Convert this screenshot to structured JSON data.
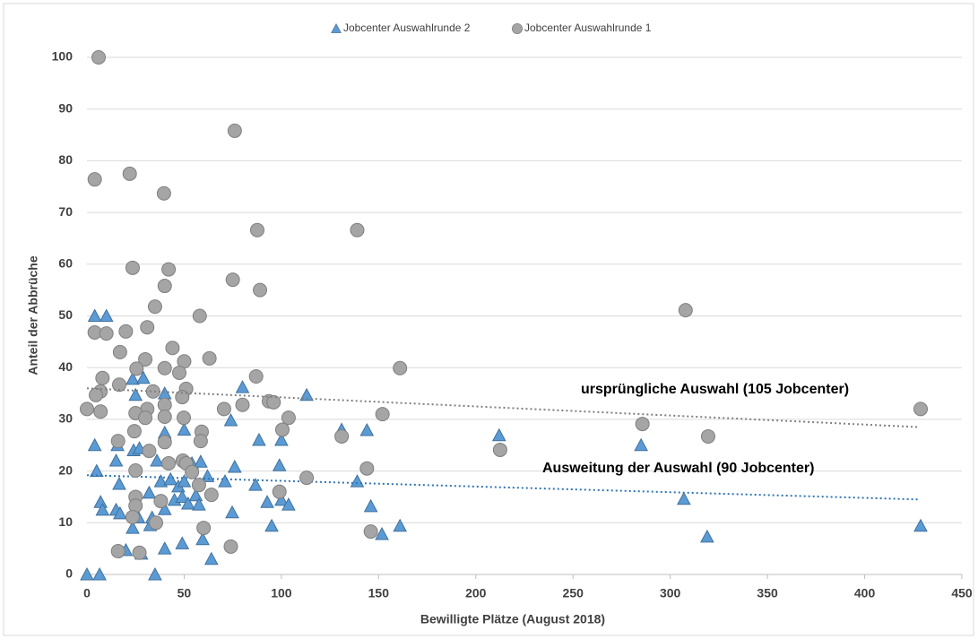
{
  "chart_data": {
    "type": "scatter",
    "xlabel": "Bewilligte Plätze (August 2018)",
    "ylabel": "Anteil der Abbrüche",
    "xlim": [
      0,
      450
    ],
    "xticks": [
      0,
      50,
      100,
      150,
      200,
      250,
      300,
      350,
      400,
      450
    ],
    "ylim": [
      0,
      100
    ],
    "yticks": [
      0,
      10,
      20,
      30,
      40,
      50,
      60,
      70,
      80,
      90,
      100
    ],
    "grid": true,
    "legend": "top",
    "annotations": [
      "ursprüngliche Auswahl (105 Jobcenter)",
      "Ausweitung der Auswahl (90 Jobcenter)"
    ],
    "series": [
      {
        "name": "Jobcenter Auswahlrunde 2",
        "marker": "triangle",
        "color": "#5b9bd5",
        "x": [
          0,
          6.5,
          4,
          10,
          4,
          5,
          7,
          8,
          15,
          15.7,
          16.6,
          15,
          17,
          20,
          23.5,
          23.5,
          25,
          24,
          27,
          29,
          26.5,
          28,
          32,
          32.5,
          33.5,
          35,
          36,
          38,
          40,
          40,
          40,
          40,
          43,
          45,
          47,
          49,
          49,
          50,
          50,
          52,
          54,
          56,
          57.6,
          58.5,
          59.5,
          62,
          64,
          71,
          74,
          74.7,
          76,
          80,
          86.7,
          88.5,
          92.7,
          95,
          99,
          100,
          100,
          103.7,
          113,
          131,
          139,
          144,
          146,
          151.7,
          161,
          212,
          285,
          307,
          319,
          428.8
        ],
        "values": [
          0,
          0,
          50,
          50,
          25,
          20,
          14,
          12.5,
          22,
          25,
          17.5,
          12.5,
          11.8,
          4.7,
          9,
          37.8,
          34.7,
          24,
          24.4,
          38,
          11,
          4,
          15.8,
          9.5,
          11,
          0,
          22,
          18,
          35,
          27.4,
          12.6,
          5,
          18.4,
          14.4,
          17,
          6,
          15,
          28,
          18,
          13.7,
          21.5,
          15.3,
          13.5,
          21.8,
          6.8,
          19,
          3,
          18,
          29.8,
          12,
          20.8,
          36.2,
          17.3,
          26,
          14,
          9.4,
          21.1,
          26,
          14.4,
          13.5,
          34.7,
          28,
          18,
          27.9,
          13.2,
          7.8,
          9.4,
          26.9,
          25,
          14.6,
          7.3,
          9.4
        ],
        "trend": {
          "x": [
            0,
            428
          ],
          "values": [
            19.2,
            14.5
          ]
        }
      },
      {
        "name": "Jobcenter Auswahlrunde 1",
        "marker": "circle",
        "color": "#a5a5a5",
        "x": [
          6,
          4,
          22,
          39.6,
          76,
          87.6,
          139,
          23.5,
          42,
          75,
          89,
          40,
          35,
          58,
          31,
          20,
          4,
          10,
          17,
          44,
          63,
          50,
          30,
          25.5,
          40,
          47.5,
          8,
          161,
          87,
          16.6,
          7,
          4.6,
          34,
          51,
          49,
          40,
          31,
          70.5,
          80,
          93.6,
          96,
          0,
          7,
          25,
          30,
          40,
          49.8,
          103.7,
          152,
          59,
          58.5,
          24.4,
          40,
          16,
          100.5,
          131,
          285.7,
          307.9,
          319.5,
          428.8,
          32,
          42,
          49.3,
          51,
          25,
          54,
          144,
          113,
          212.5,
          57.6,
          64,
          99,
          25,
          38,
          25,
          23.5,
          35.5,
          60,
          146,
          16,
          27,
          74
        ],
        "values": [
          100,
          76.4,
          77.5,
          73.7,
          85.8,
          66.6,
          66.6,
          59.3,
          59,
          57,
          55,
          55.8,
          51.8,
          50,
          47.8,
          47,
          46.8,
          46.6,
          43,
          43.8,
          41.8,
          41.2,
          41.6,
          39.8,
          39.9,
          39,
          38,
          39.9,
          38.3,
          36.7,
          35.4,
          34.7,
          35.4,
          35.9,
          34.3,
          32.8,
          32,
          32,
          32.8,
          33.5,
          33.3,
          32,
          31.5,
          31.2,
          30.3,
          30.5,
          30.3,
          30.3,
          31,
          27.6,
          25.8,
          27.7,
          25.6,
          25.8,
          28,
          26.7,
          29.1,
          51.1,
          26.7,
          32,
          23.9,
          21.5,
          22,
          21.5,
          20.1,
          19.8,
          20.5,
          18.7,
          24.1,
          17.3,
          15.4,
          16,
          15,
          14.2,
          13.3,
          11.1,
          10,
          9,
          8.3,
          4.5,
          4.2,
          5.4
        ],
        "trend": {
          "x": [
            0,
            428
          ],
          "values": [
            36,
            28.5
          ]
        }
      }
    ]
  }
}
